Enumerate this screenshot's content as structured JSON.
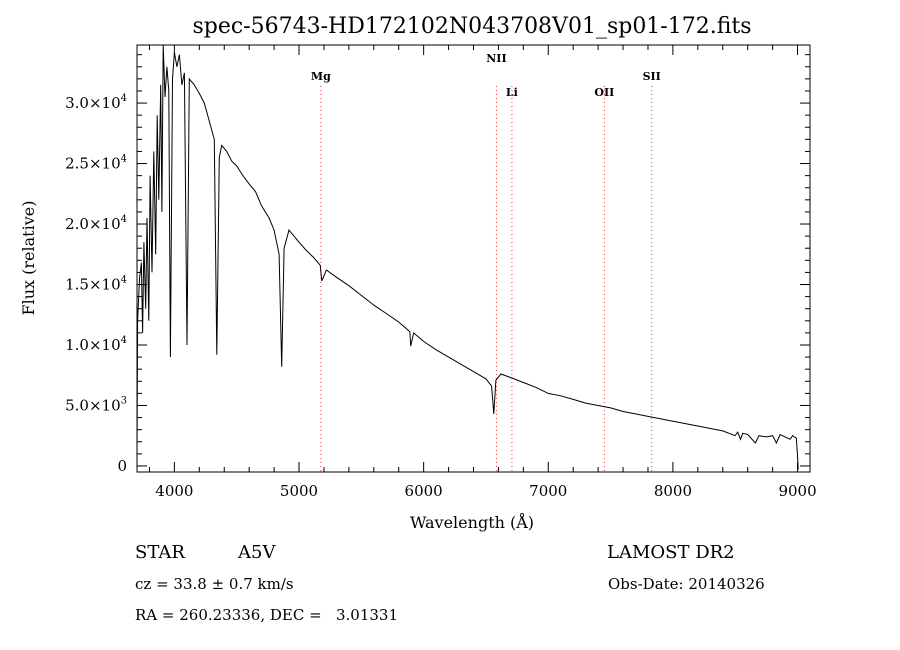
{
  "chart_data": {
    "type": "line",
    "title": "spec-56743-HD172102N043708V01_sp01-172.fits",
    "xlabel": "Wavelength (Å)",
    "ylabel": "Flux (relative)",
    "xlim": [
      3700,
      9100
    ],
    "ylim": [
      -500,
      34800
    ],
    "grid": false,
    "x_ticks": [
      4000,
      5000,
      6000,
      7000,
      8000,
      9000
    ],
    "y_ticks": [
      {
        "value": 0,
        "mantissa": "0",
        "exponent": ""
      },
      {
        "value": 5000,
        "mantissa": "5.0×10",
        "exponent": "3"
      },
      {
        "value": 10000,
        "mantissa": "1.0×10",
        "exponent": "4"
      },
      {
        "value": 15000,
        "mantissa": "1.5×10",
        "exponent": "4"
      },
      {
        "value": 20000,
        "mantissa": "2.0×10",
        "exponent": "4"
      },
      {
        "value": 25000,
        "mantissa": "2.5×10",
        "exponent": "4"
      },
      {
        "value": 30000,
        "mantissa": "3.0×10",
        "exponent": "4"
      }
    ],
    "series": [
      {
        "values": [
          [
            3700,
            800
          ],
          [
            3705,
            12000
          ],
          [
            3720,
            15500
          ],
          [
            3735,
            16800
          ],
          [
            3745,
            11000
          ],
          [
            3755,
            18500
          ],
          [
            3770,
            13000
          ],
          [
            3780,
            20500
          ],
          [
            3795,
            12000
          ],
          [
            3805,
            24000
          ],
          [
            3820,
            16000
          ],
          [
            3835,
            26000
          ],
          [
            3850,
            17500
          ],
          [
            3862,
            29000
          ],
          [
            3875,
            22000
          ],
          [
            3890,
            31500
          ],
          [
            3900,
            21000
          ],
          [
            3910,
            34800
          ],
          [
            3925,
            30500
          ],
          [
            3940,
            33000
          ],
          [
            3955,
            31000
          ],
          [
            3968,
            9000
          ],
          [
            3985,
            32000
          ],
          [
            4000,
            34200
          ],
          [
            4020,
            33000
          ],
          [
            4040,
            34000
          ],
          [
            4060,
            31500
          ],
          [
            4080,
            32500
          ],
          [
            4101,
            10000
          ],
          [
            4120,
            32000
          ],
          [
            4160,
            31500
          ],
          [
            4200,
            30800
          ],
          [
            4240,
            30000
          ],
          [
            4280,
            28500
          ],
          [
            4320,
            27000
          ],
          [
            4340,
            9200
          ],
          [
            4360,
            25500
          ],
          [
            4380,
            26500
          ],
          [
            4420,
            26000
          ],
          [
            4460,
            25200
          ],
          [
            4500,
            24800
          ],
          [
            4550,
            24000
          ],
          [
            4600,
            23300
          ],
          [
            4650,
            22700
          ],
          [
            4700,
            21500
          ],
          [
            4760,
            20500
          ],
          [
            4800,
            19500
          ],
          [
            4840,
            17500
          ],
          [
            4861,
            8200
          ],
          [
            4880,
            18000
          ],
          [
            4920,
            19500
          ],
          [
            4960,
            19000
          ],
          [
            5000,
            18500
          ],
          [
            5060,
            17800
          ],
          [
            5120,
            17200
          ],
          [
            5170,
            16600
          ],
          [
            5183,
            15300
          ],
          [
            5220,
            16200
          ],
          [
            5300,
            15600
          ],
          [
            5400,
            14900
          ],
          [
            5500,
            14100
          ],
          [
            5600,
            13300
          ],
          [
            5700,
            12600
          ],
          [
            5800,
            11900
          ],
          [
            5890,
            11100
          ],
          [
            5896,
            9900
          ],
          [
            5920,
            11000
          ],
          [
            6000,
            10300
          ],
          [
            6100,
            9600
          ],
          [
            6200,
            9000
          ],
          [
            6300,
            8400
          ],
          [
            6400,
            7800
          ],
          [
            6500,
            7200
          ],
          [
            6545,
            6600
          ],
          [
            6563,
            4300
          ],
          [
            6580,
            7100
          ],
          [
            6620,
            7600
          ],
          [
            6700,
            7300
          ],
          [
            6800,
            6900
          ],
          [
            6900,
            6500
          ],
          [
            7000,
            6000
          ],
          [
            7100,
            5800
          ],
          [
            7200,
            5500
          ],
          [
            7300,
            5200
          ],
          [
            7400,
            5000
          ],
          [
            7500,
            4800
          ],
          [
            7600,
            4500
          ],
          [
            7700,
            4300
          ],
          [
            7800,
            4100
          ],
          [
            7900,
            3900
          ],
          [
            8000,
            3700
          ],
          [
            8100,
            3500
          ],
          [
            8200,
            3300
          ],
          [
            8300,
            3100
          ],
          [
            8400,
            2900
          ],
          [
            8498,
            2500
          ],
          [
            8520,
            2800
          ],
          [
            8542,
            2200
          ],
          [
            8560,
            2700
          ],
          [
            8600,
            2600
          ],
          [
            8662,
            1900
          ],
          [
            8690,
            2500
          ],
          [
            8750,
            2400
          ],
          [
            8800,
            2500
          ],
          [
            8830,
            1900
          ],
          [
            8860,
            2600
          ],
          [
            8900,
            2400
          ],
          [
            8940,
            2200
          ],
          [
            8960,
            2500
          ],
          [
            8990,
            2300
          ],
          [
            9000,
            900
          ],
          [
            9005,
            -300
          ]
        ]
      }
    ],
    "lines": [
      {
        "label": "Mg",
        "wavelength": 5175
      },
      {
        "label": "NII",
        "wavelength": 6584
      },
      {
        "label": "Li",
        "wavelength": 6708
      },
      {
        "label": "OII",
        "wavelength": 7450
      },
      {
        "label": "SII",
        "wavelength": 7830
      }
    ]
  },
  "info": {
    "class_label": "STAR",
    "subclass": "A5V",
    "survey": "LAMOST DR2",
    "cz": "cz = 33.8 ± 0.7 km/s",
    "obs_date": "Obs-Date: 20140326",
    "coords": "RA = 260.23336, DEC =   3.01331"
  }
}
